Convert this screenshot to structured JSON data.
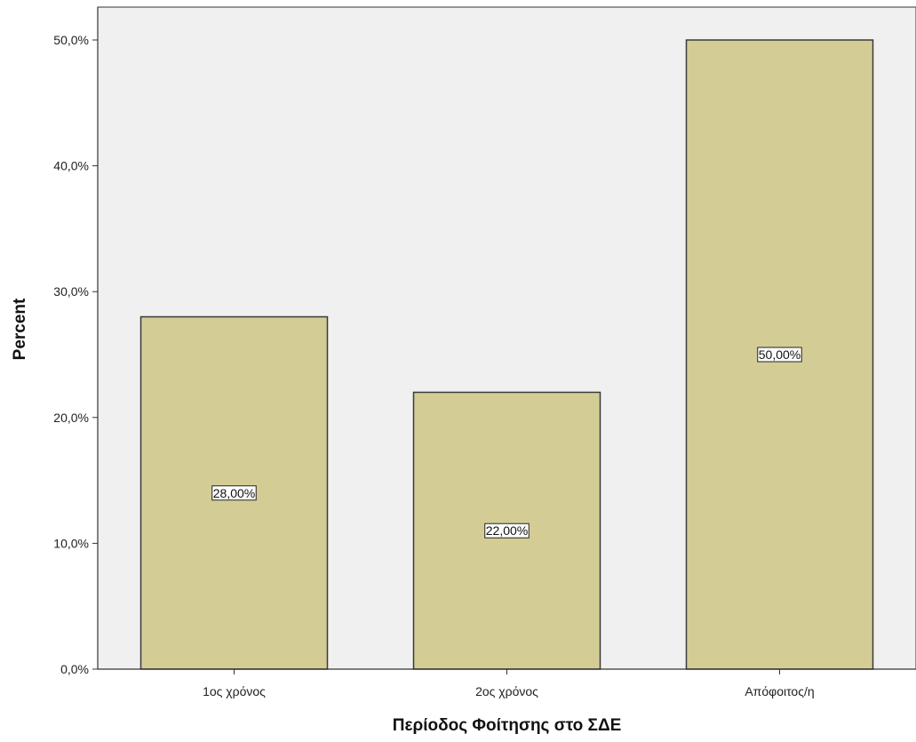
{
  "chart_data": {
    "type": "bar",
    "title": "",
    "xlabel": "Περίοδος Φοίτησης στο ΣΔΕ",
    "ylabel": "Percent",
    "categories": [
      "1ος χρόνος",
      "2ος χρόνος",
      "Απόφοιτος/η"
    ],
    "values": [
      28.0,
      22.0,
      50.0
    ],
    "data_labels": [
      "28,00%",
      "22,00%",
      "50,00%"
    ],
    "ylim": [
      0,
      50
    ],
    "yticks": [
      0,
      10,
      20,
      30,
      40,
      50
    ],
    "ytick_labels": [
      "0,0%",
      "10,0%",
      "20,0%",
      "30,0%",
      "40,0%",
      "50,0%"
    ],
    "grid": false,
    "legend": "none",
    "colors": {
      "bar_fill": "#d3cd95",
      "bar_stroke": "#3a3a3a",
      "plot_background": "#f0f0f0",
      "axis": "#333333",
      "label_background": "#ffffff"
    }
  }
}
